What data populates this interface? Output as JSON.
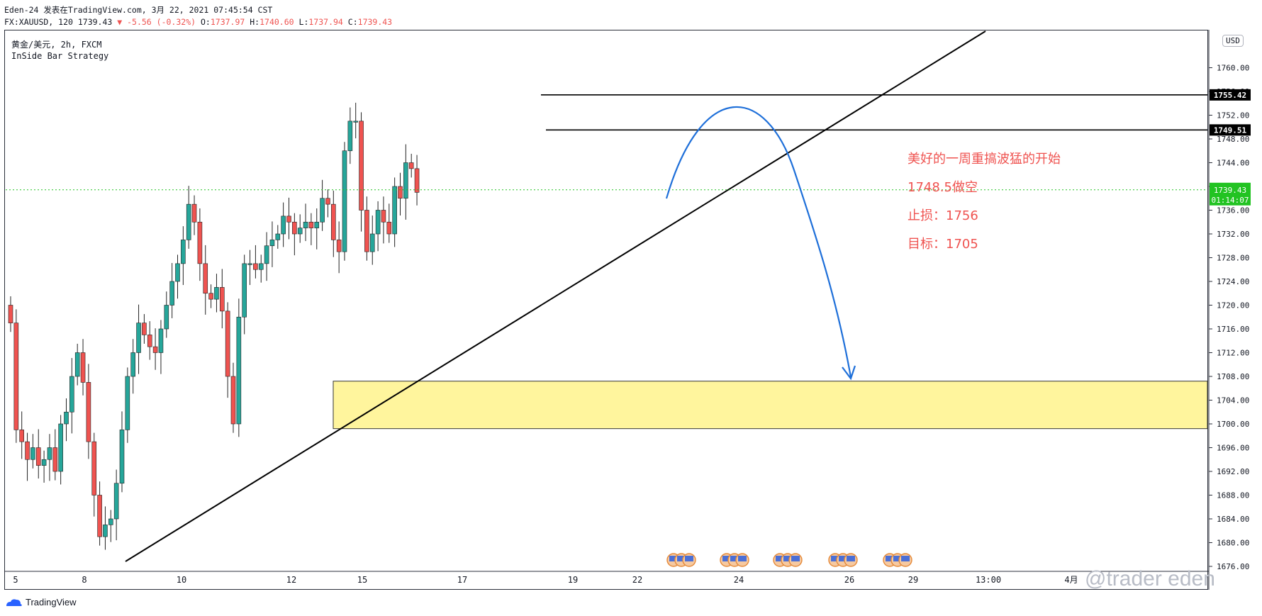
{
  "header": {
    "publish_line": "Eden-24 发表在TradingView.com, 3月 22, 2021 07:45:54 CST",
    "symbol_prefix": "FX:XAUUSD, 120 1739.43",
    "change": "▼ -5.56 (-0.32%)",
    "o_label": "O:",
    "o_value": "1737.97",
    "h_label": "H:",
    "h_value": "1740.60",
    "l_label": "L:",
    "l_value": "1737.94",
    "c_label": "C:",
    "c_value": "1739.43"
  },
  "legend": {
    "instrument": "黄金/美元, 2h, FXCM",
    "strategy": "InSide Bar Strategy"
  },
  "annotations": {
    "line1": "美好的一周重搞波猛的开始",
    "line2": "1748.5做空",
    "line3": "止损：1756",
    "line4": "目标：1705"
  },
  "axis": {
    "currency": "USD"
  },
  "footer": {
    "brand": "TradingView",
    "watermark": "@trader eden"
  },
  "colors": {
    "up": "#26a69a",
    "down": "#ef5350",
    "zone": "#fff59d",
    "arrow": "#1e6fd9",
    "note": "#ef5350",
    "price_tag": "#22c322"
  },
  "chart_data": {
    "type": "candlestick",
    "ylim": [
      1674,
      1764
    ],
    "y_ticks": [
      1676,
      1680,
      1684,
      1688,
      1692,
      1696,
      1700,
      1704,
      1708,
      1712,
      1716,
      1720,
      1724,
      1728,
      1732,
      1736,
      1740,
      1744,
      1748,
      1752,
      1756,
      1760
    ],
    "x_tick_labels": [
      "5",
      "8",
      "10",
      "12",
      "15",
      "17",
      "19",
      "22",
      "24",
      "26",
      "29",
      "13:00",
      "4月"
    ],
    "current_price": "1739.43",
    "countdown": "01:14:07",
    "price_tags": [
      {
        "label": "1755.42",
        "value": 1755.42
      },
      {
        "label": "1749.51",
        "value": 1749.51
      }
    ],
    "close": [
      1717,
      1699,
      1697,
      1694,
      1696,
      1693,
      1694,
      1696,
      1692,
      1700,
      1702,
      1708,
      1712,
      1707,
      1697,
      1688,
      1681,
      1683,
      1684,
      1690,
      1699,
      1708,
      1712,
      1717,
      1715,
      1713,
      1712,
      1716,
      1720,
      1724,
      1727,
      1731,
      1737,
      1734,
      1727,
      1722,
      1721,
      1723,
      1719,
      1708,
      1700,
      1718,
      1727,
      1727,
      1726,
      1727,
      1730,
      1731,
      1732,
      1735,
      1734,
      1732,
      1733,
      1734,
      1733,
      1734,
      1738,
      1737,
      1731,
      1729,
      1746,
      1751,
      1751,
      1736,
      1729,
      1732,
      1736,
      1734,
      1732,
      1740,
      1738,
      1744,
      1743,
      1739
    ]
  }
}
